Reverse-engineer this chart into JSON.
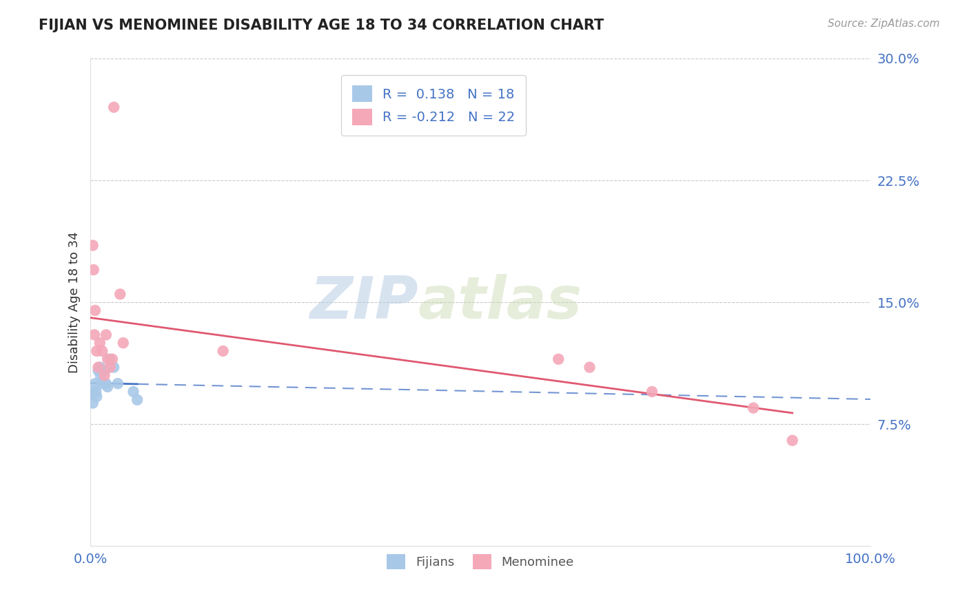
{
  "title": "FIJIAN VS MENOMINEE DISABILITY AGE 18 TO 34 CORRELATION CHART",
  "source": "Source: ZipAtlas.com",
  "ylabel": "Disability Age 18 to 34",
  "xlim": [
    0,
    1.0
  ],
  "ylim": [
    0,
    0.3
  ],
  "xticks": [
    0.0,
    1.0
  ],
  "xticklabels": [
    "0.0%",
    "100.0%"
  ],
  "yticks": [
    0.075,
    0.15,
    0.225,
    0.3
  ],
  "yticklabels": [
    "7.5%",
    "15.0%",
    "22.5%",
    "30.0%"
  ],
  "fijian_R": 0.138,
  "fijian_N": 18,
  "menominee_R": -0.212,
  "menominee_N": 22,
  "fijian_color": "#A8C8E8",
  "menominee_color": "#F4A8B8",
  "fijian_line_color": "#4472C4",
  "menominee_line_color": "#E05870",
  "watermark_zip": "ZIP",
  "watermark_atlas": "atlas",
  "fijian_x": [
    0.002,
    0.003,
    0.005,
    0.006,
    0.007,
    0.008,
    0.01,
    0.012,
    0.013,
    0.015,
    0.018,
    0.02,
    0.022,
    0.025,
    0.03,
    0.035,
    0.055,
    0.06
  ],
  "fijian_y": [
    0.093,
    0.088,
    0.095,
    0.1,
    0.095,
    0.092,
    0.108,
    0.11,
    0.105,
    0.1,
    0.108,
    0.1,
    0.098,
    0.115,
    0.11,
    0.1,
    0.095,
    0.09
  ],
  "menominee_x": [
    0.003,
    0.004,
    0.005,
    0.006,
    0.008,
    0.01,
    0.012,
    0.015,
    0.018,
    0.02,
    0.022,
    0.025,
    0.028,
    0.03,
    0.038,
    0.042,
    0.17,
    0.6,
    0.64,
    0.72,
    0.85,
    0.9
  ],
  "menominee_y": [
    0.185,
    0.17,
    0.13,
    0.145,
    0.12,
    0.11,
    0.125,
    0.12,
    0.105,
    0.13,
    0.115,
    0.11,
    0.115,
    0.27,
    0.155,
    0.125,
    0.12,
    0.115,
    0.11,
    0.095,
    0.085,
    0.065
  ]
}
